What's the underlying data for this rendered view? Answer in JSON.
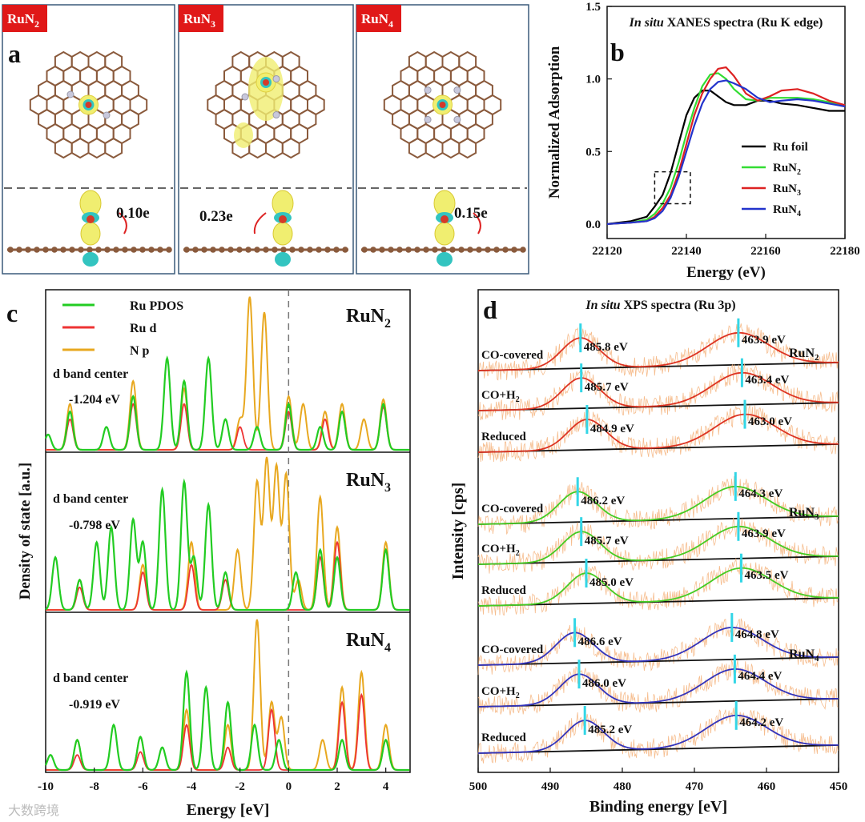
{
  "panel_a": {
    "letter": "a",
    "structures": [
      {
        "tag": "RuN",
        "tag_sub": "2",
        "charge": "0.10e"
      },
      {
        "tag": "RuN",
        "tag_sub": "3",
        "charge": "0.23e"
      },
      {
        "tag": "RuN",
        "tag_sub": "4",
        "charge": "0.15e"
      }
    ]
  },
  "watermark": "大数跨境",
  "chart_data": [
    {
      "panel": "b",
      "type": "line",
      "title_italic": "In situ",
      "title_rest": " XANES spectra (Ru K edge)",
      "xlabel": "Energy (eV)",
      "ylabel": "Normalized Adsorption",
      "xlim": [
        22120,
        22180
      ],
      "ylim": [
        -0.1,
        1.5
      ],
      "xticks": [
        "22120",
        "22140",
        "22160",
        "22180"
      ],
      "yticks": [
        "0.0",
        "0.5",
        "1.0",
        "1.5"
      ],
      "legend": [
        {
          "name": "Ru foil",
          "color": "#000000"
        },
        {
          "name": "RuN",
          "sub": "2",
          "color": "#33dd33"
        },
        {
          "name": "RuN",
          "sub": "3",
          "color": "#dd2222"
        },
        {
          "name": "RuN",
          "sub": "4",
          "color": "#2233cc"
        }
      ],
      "series": [
        {
          "name": "Ru foil",
          "color": "#000000",
          "x": [
            22120,
            22126,
            22130,
            22132,
            22134,
            22136,
            22138,
            22140,
            22142,
            22144,
            22146,
            22148,
            22150,
            22152,
            22155,
            22158,
            22161,
            22164,
            22168,
            22172,
            22176,
            22180
          ],
          "y": [
            0.0,
            0.02,
            0.05,
            0.12,
            0.2,
            0.35,
            0.55,
            0.75,
            0.87,
            0.92,
            0.92,
            0.88,
            0.84,
            0.82,
            0.82,
            0.85,
            0.85,
            0.83,
            0.82,
            0.8,
            0.78,
            0.78
          ]
        },
        {
          "name": "RuN2",
          "color": "#33dd33",
          "x": [
            22120,
            22126,
            22130,
            22132,
            22134,
            22136,
            22138,
            22140,
            22142,
            22144,
            22146,
            22148,
            22150,
            22152,
            22155,
            22158,
            22161,
            22164,
            22168,
            22172,
            22176,
            22180
          ],
          "y": [
            0.0,
            0.01,
            0.03,
            0.07,
            0.14,
            0.25,
            0.42,
            0.62,
            0.8,
            0.95,
            1.03,
            1.04,
            1.0,
            0.93,
            0.86,
            0.85,
            0.87,
            0.87,
            0.87,
            0.86,
            0.84,
            0.82
          ]
        },
        {
          "name": "RuN3",
          "color": "#dd2222",
          "x": [
            22120,
            22126,
            22130,
            22132,
            22134,
            22136,
            22138,
            22140,
            22142,
            22144,
            22146,
            22148,
            22150,
            22152,
            22155,
            22158,
            22161,
            22164,
            22168,
            22172,
            22176,
            22180
          ],
          "y": [
            0.0,
            0.01,
            0.02,
            0.05,
            0.11,
            0.2,
            0.35,
            0.55,
            0.75,
            0.9,
            1.0,
            1.07,
            1.08,
            1.02,
            0.9,
            0.85,
            0.88,
            0.92,
            0.93,
            0.9,
            0.85,
            0.82
          ]
        },
        {
          "name": "RuN4",
          "color": "#2233cc",
          "x": [
            22120,
            22126,
            22130,
            22132,
            22134,
            22136,
            22138,
            22140,
            22142,
            22144,
            22146,
            22148,
            22150,
            22152,
            22155,
            22158,
            22161,
            22164,
            22168,
            22172,
            22176,
            22180
          ],
          "y": [
            0.0,
            0.01,
            0.02,
            0.04,
            0.09,
            0.18,
            0.32,
            0.5,
            0.68,
            0.83,
            0.93,
            0.98,
            0.99,
            0.97,
            0.93,
            0.87,
            0.84,
            0.85,
            0.86,
            0.85,
            0.83,
            0.81
          ]
        }
      ],
      "inset_box_x": [
        22132,
        22141
      ],
      "inset_box_y": [
        0.14,
        0.36
      ]
    },
    {
      "panel": "c",
      "type": "line",
      "xlabel": "Energy [eV]",
      "ylabel": "Density of state [a.u.]",
      "xlim": [
        -10,
        5
      ],
      "xticks": [
        "-10",
        "-8",
        "-6",
        "-4",
        "-2",
        "0",
        "2",
        "4"
      ],
      "legend": [
        {
          "name": "Ru PDOS",
          "color": "#22cc22"
        },
        {
          "name": "Ru d",
          "color": "#ee3333"
        },
        {
          "name": "N p",
          "color": "#e8a820"
        }
      ],
      "subplots": [
        {
          "label": "RuN",
          "sub": "2",
          "center_label": "d band center",
          "center_value": "-1.204 eV",
          "ru_pdos_peaks": [
            [
              -9.9,
              0.1
            ],
            [
              -9.0,
              0.25
            ],
            [
              -7.5,
              0.15
            ],
            [
              -6.4,
              0.35
            ],
            [
              -5.0,
              0.6
            ],
            [
              -4.3,
              0.45
            ],
            [
              -3.3,
              0.6
            ],
            [
              -2.6,
              0.2
            ],
            [
              -1.3,
              0.15
            ],
            [
              0.0,
              0.3
            ],
            [
              1.3,
              0.15
            ],
            [
              2.2,
              0.25
            ],
            [
              3.9,
              0.3
            ]
          ],
          "ru_d_peaks": [
            [
              -9.0,
              0.2
            ],
            [
              -6.4,
              0.3
            ],
            [
              -4.3,
              0.3
            ],
            [
              -2.0,
              0.15
            ],
            [
              0.0,
              0.25
            ],
            [
              1.5,
              0.2
            ],
            [
              2.2,
              0.25
            ],
            [
              3.9,
              0.28
            ]
          ],
          "n_p_peaks": [
            [
              -9.0,
              0.3
            ],
            [
              -6.4,
              0.45
            ],
            [
              -4.3,
              0.4
            ],
            [
              -2.0,
              0.2
            ],
            [
              -1.6,
              1.0
            ],
            [
              -1.0,
              0.9
            ],
            [
              0.0,
              0.35
            ],
            [
              0.6,
              0.3
            ],
            [
              1.5,
              0.25
            ],
            [
              2.2,
              0.3
            ],
            [
              3.1,
              0.2
            ],
            [
              3.9,
              0.33
            ]
          ]
        },
        {
          "label": "RuN",
          "sub": "3",
          "center_label": "d band center",
          "center_value": "-0.798 eV",
          "ru_pdos_peaks": [
            [
              -9.6,
              0.35
            ],
            [
              -8.6,
              0.2
            ],
            [
              -7.9,
              0.45
            ],
            [
              -7.3,
              0.55
            ],
            [
              -6.4,
              0.6
            ],
            [
              -6.0,
              0.45
            ],
            [
              -5.2,
              0.8
            ],
            [
              -4.3,
              0.85
            ],
            [
              -3.9,
              0.35
            ],
            [
              -3.3,
              0.7
            ],
            [
              -2.6,
              0.25
            ],
            [
              0.3,
              0.25
            ],
            [
              1.3,
              0.4
            ],
            [
              2.0,
              0.35
            ],
            [
              4.0,
              0.4
            ]
          ],
          "ru_d_peaks": [
            [
              -8.6,
              0.15
            ],
            [
              -6.0,
              0.25
            ],
            [
              -4.0,
              0.3
            ],
            [
              -2.6,
              0.2
            ],
            [
              1.3,
              0.35
            ],
            [
              2.0,
              0.45
            ],
            [
              4.0,
              0.4
            ]
          ],
          "n_p_peaks": [
            [
              -8.6,
              0.2
            ],
            [
              -6.0,
              0.3
            ],
            [
              -4.0,
              0.45
            ],
            [
              -2.1,
              0.4
            ],
            [
              -1.3,
              0.85
            ],
            [
              -0.9,
              1.0
            ],
            [
              -0.5,
              0.95
            ],
            [
              -0.1,
              0.9
            ],
            [
              0.4,
              0.2
            ],
            [
              1.3,
              0.75
            ],
            [
              2.0,
              0.55
            ],
            [
              4.0,
              0.45
            ]
          ]
        },
        {
          "label": "RuN",
          "sub": "4",
          "center_label": "d band center",
          "center_value": "-0.919 eV",
          "ru_pdos_peaks": [
            [
              -9.8,
              0.1
            ],
            [
              -8.7,
              0.2
            ],
            [
              -7.2,
              0.3
            ],
            [
              -6.1,
              0.22
            ],
            [
              -5.2,
              0.15
            ],
            [
              -4.2,
              0.65
            ],
            [
              -3.4,
              0.55
            ],
            [
              -2.5,
              0.45
            ],
            [
              -1.4,
              0.3
            ],
            [
              -0.4,
              0.2
            ],
            [
              2.2,
              0.2
            ],
            [
              4.0,
              0.2
            ]
          ],
          "ru_d_peaks": [
            [
              -8.7,
              0.1
            ],
            [
              -6.1,
              0.12
            ],
            [
              -4.2,
              0.3
            ],
            [
              -2.5,
              0.15
            ],
            [
              -0.7,
              0.4
            ],
            [
              2.2,
              0.45
            ],
            [
              3.0,
              0.5
            ],
            [
              4.0,
              0.2
            ]
          ],
          "n_p_peaks": [
            [
              -8.7,
              0.2
            ],
            [
              -6.1,
              0.22
            ],
            [
              -4.2,
              0.4
            ],
            [
              -2.5,
              0.3
            ],
            [
              -1.3,
              1.0
            ],
            [
              -0.7,
              0.45
            ],
            [
              -0.3,
              0.35
            ],
            [
              1.4,
              0.2
            ],
            [
              2.2,
              0.55
            ],
            [
              3.0,
              0.65
            ],
            [
              4.0,
              0.3
            ]
          ]
        }
      ]
    },
    {
      "panel": "d",
      "type": "line",
      "title_italic": "In situ",
      "title_rest": " XPS spectra (Ru 3p)",
      "xlabel": "Binding energy [eV]",
      "ylabel": "Intensity [cps]",
      "xlim": [
        500,
        450
      ],
      "xticks": [
        "500",
        "490",
        "480",
        "470",
        "460",
        "450"
      ],
      "groups": [
        {
          "label": "RuN",
          "sub": "2",
          "color": "#dd3322",
          "rows": [
            {
              "name": "CO-covered",
              "p1": 485.8,
              "p1_label": "485.8 eV",
              "p2": 463.9,
              "p2_label": "463.9 eV"
            },
            {
              "name": "CO+H",
              "name_sub": "2",
              "p1": 485.7,
              "p1_label": "485.7 eV",
              "p2": 463.4,
              "p2_label": "463.4 eV"
            },
            {
              "name": "Reduced",
              "p1": 484.9,
              "p1_label": "484.9 eV",
              "p2": 463.0,
              "p2_label": "463.0 eV"
            }
          ]
        },
        {
          "label": "RuN",
          "sub": "3",
          "color": "#44cc22",
          "rows": [
            {
              "name": "CO-covered",
              "p1": 486.2,
              "p1_label": "486.2 eV",
              "p2": 464.3,
              "p2_label": "464.3 eV"
            },
            {
              "name": "CO+H",
              "name_sub": "2",
              "p1": 485.7,
              "p1_label": "485.7 eV",
              "p2": 463.9,
              "p2_label": "463.9 eV"
            },
            {
              "name": "Reduced",
              "p1": 485.0,
              "p1_label": "485.0 eV",
              "p2": 463.5,
              "p2_label": "463.5 eV"
            }
          ]
        },
        {
          "label": "RuN",
          "sub": "4",
          "color": "#3333bb",
          "rows": [
            {
              "name": "CO-covered",
              "p1": 486.6,
              "p1_label": "486.6 eV",
              "p2": 464.8,
              "p2_label": "464.8 eV"
            },
            {
              "name": "CO+H",
              "name_sub": "2",
              "p1": 486.0,
              "p1_label": "486.0 eV",
              "p2": 464.4,
              "p2_label": "464.4 eV"
            },
            {
              "name": "Reduced",
              "p1": 485.2,
              "p1_label": "485.2 eV",
              "p2": 464.2,
              "p2_label": "464.2 eV"
            }
          ]
        }
      ]
    }
  ]
}
